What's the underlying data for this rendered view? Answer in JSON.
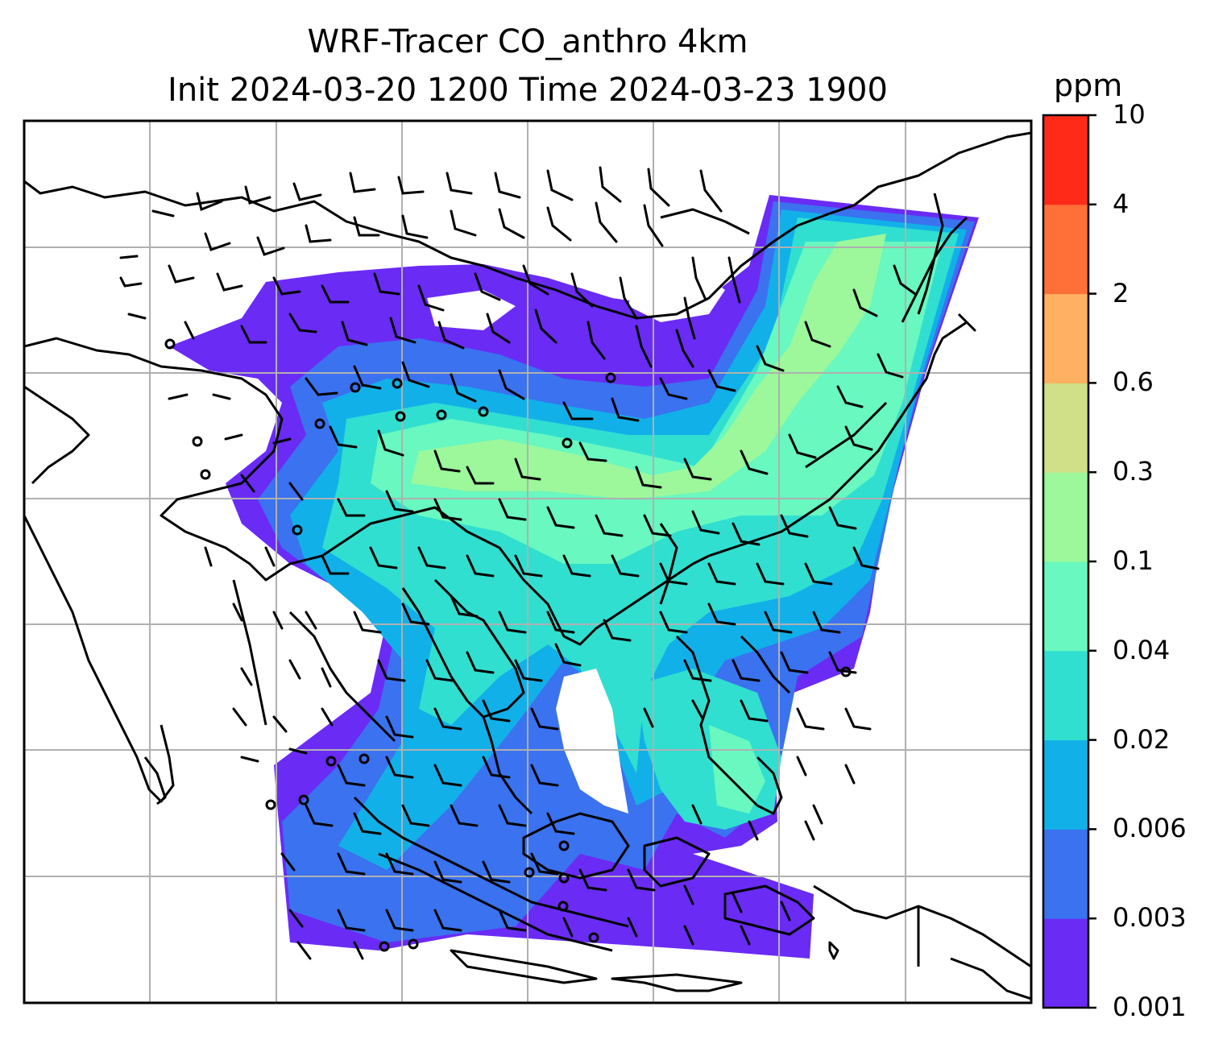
{
  "title_line1": "WRF-Tracer CO_anthro 4km",
  "title_line2": "Init 2024-03-20 1200 Time 2024-03-23 1900",
  "colorbar": {
    "units": "ppm",
    "levels": [
      "0.001",
      "0.003",
      "0.006",
      "0.02",
      "0.04",
      "0.1",
      "0.3",
      "0.6",
      "2",
      "4",
      "10"
    ],
    "colors": [
      "#6a2bf5",
      "#3a72f0",
      "#12b0e8",
      "#30dfd0",
      "#68f8c0",
      "#9cf89a",
      "#d0e088",
      "#ffb060",
      "#ff7038",
      "#ff2a18"
    ]
  },
  "map": {
    "frame_color": "#000000",
    "gridline_color": "#b0b0b0",
    "coastline_color": "#000000",
    "barb_color": "#000000"
  }
}
